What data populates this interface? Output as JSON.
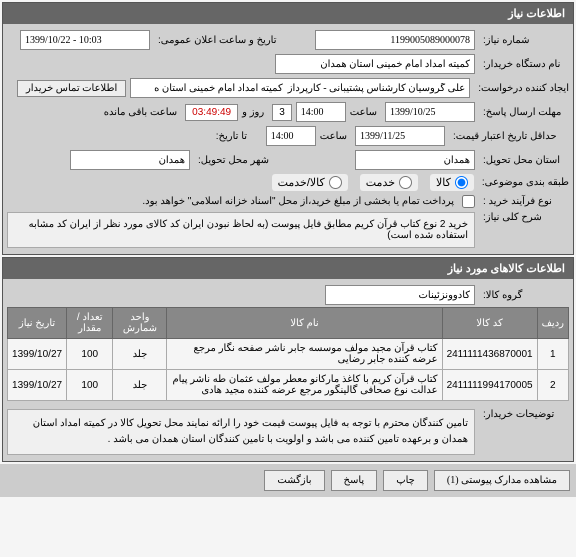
{
  "panel1": {
    "title": "اطلاعات نیاز",
    "need_no_label": "شماره نیاز:",
    "need_no": "1199005089000078",
    "announce_label": "تاریخ و ساعت اعلان عمومی:",
    "announce_value": "1399/10/22 - 10:03",
    "buyer_label": "نام دستگاه خریدار:",
    "buyer_value": "کمیته امداد امام خمینی استان همدان",
    "creator_label": "ایجاد کننده درخواست:",
    "creator_value": "علی گروسیان کارشناس پشتیبانی - کارپرداز  کمیته امداد امام خمینی استان ه",
    "contact_btn": "اطلاعات تماس خریدار",
    "deadline_label": "مهلت ارسال پاسخ:",
    "deadline_date": "1399/10/25",
    "time_label": "ساعت",
    "deadline_time": "14:00",
    "countdown_days": "3",
    "day_label": "روز و",
    "countdown_time": "03:49:49",
    "remain_label": "ساعت باقی مانده",
    "minprice_label": "حداقل تاریخ اعتبار قیمت:",
    "minprice_date": "1399/11/25",
    "minprice_time": "14:00",
    "todate_label": "تا تاریخ:",
    "delivery_state_label": "استان محل تحویل:",
    "delivery_state": "همدان",
    "delivery_city_label": "شهر محل تحویل:",
    "delivery_city": "همدان",
    "budget_label": "طبقه بندی موضوعی:",
    "radio_goods": "کالا",
    "radio_service": "خدمت",
    "radio_both": "کالا/خدمت",
    "process_label": "نوع فرآیند خرید :",
    "process_note": "پرداخت تمام یا بخشی از مبلغ خرید،از محل \"اسناد خزانه اسلامی\" خواهد بود.",
    "subject_label": "شرح کلی نیاز:",
    "subject_text": "خرید 2 نوع کتاب قرآن کریم مطابق فایل پیوست (به لحاظ نبودن ایران کد کالای مورد نظر از ایران کد مشابه استفاده شده است)"
  },
  "panel2": {
    "title": "اطلاعات کالاهای مورد نیاز",
    "group_label": "گروه کالا:",
    "group_value": "کادوونزئینات",
    "cols": {
      "row": "ردیف",
      "code": "کد کالا",
      "name": "نام کالا",
      "unit": "واحد شمارش",
      "qty": "تعداد / مقدار",
      "date": "تاریخ نیاز"
    },
    "rows": [
      {
        "n": "1",
        "code": "2411111436870001",
        "name": "کتاب قرآن مجید مولف موسسه جابر ناشر صفحه نگار مرجع عرضه کننده جابر رضایی",
        "unit": "جلد",
        "qty": "100",
        "date": "1399/10/27"
      },
      {
        "n": "2",
        "code": "2411111994170005",
        "name": "کتاب قرآن کریم با کاغذ مارکانو معطر مولف عثمان طه ناشر پیام عدالت نوع صحافی گالینگور مرجع عرضه کننده مجید هادی",
        "unit": "جلد",
        "qty": "100",
        "date": "1399/10/27"
      }
    ],
    "notes_label": "توضیحات خریدار:",
    "notes_text": "تامین کنندگان محترم با توجه به فایل پیوست قیمت خود را ارائه نمایند محل تحویل کالا در کمیته امداد استان همدان و برعهده تامین کننده می باشد و اولویت با تامین کنندگان استان همدان می باشد ."
  },
  "footer": {
    "attach": "مشاهده مدارک پیوستی (1)",
    "print": "چاپ",
    "reply": "پاسخ",
    "back": "بازگشت"
  }
}
